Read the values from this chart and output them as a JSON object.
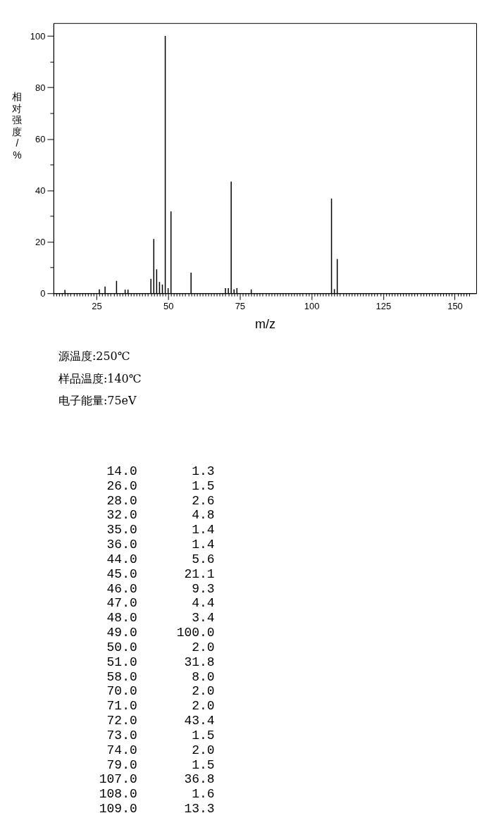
{
  "chart_data": [
    {
      "type": "bar",
      "xlabel": "m/z",
      "ylabel": "相对强度/%",
      "annotations": [
        "源温度:250℃",
        "样品温度:140℃",
        "电子能量:75eV"
      ],
      "x": [
        14,
        26,
        28,
        32,
        35,
        36,
        44,
        45,
        46,
        47,
        48,
        49,
        50,
        51,
        58,
        70,
        71,
        72,
        73,
        74,
        79,
        107,
        108,
        109
      ],
      "values": [
        1.3,
        1.5,
        2.6,
        4.8,
        1.4,
        1.4,
        5.6,
        21.1,
        9.3,
        4.4,
        3.4,
        100,
        2,
        31.8,
        8,
        2,
        2,
        43.4,
        1.5,
        2,
        1.5,
        36.8,
        1.6,
        13.3
      ],
      "color": "#000000",
      "xlim": [
        10,
        157.5
      ],
      "ylim": [
        0,
        105
      ],
      "yticks": [
        0,
        {
          "value": 10,
          "label": null
        },
        20,
        {
          "value": 30,
          "label": null
        },
        40,
        {
          "value": 50,
          "label": null
        },
        60,
        {
          "value": 70,
          "label": null
        },
        80,
        {
          "value": 90,
          "label": null
        },
        100
      ],
      "xticks": [
        {
          "value": 10,
          "label": null
        },
        {
          "value": 11,
          "label": null
        },
        {
          "value": 12,
          "label": null
        },
        {
          "value": 13,
          "label": null
        },
        {
          "value": 14,
          "label": null
        },
        {
          "value": 15,
          "label": null
        },
        {
          "value": 16,
          "label": null
        },
        {
          "value": 17,
          "label": null
        },
        {
          "value": 18,
          "label": null
        },
        {
          "value": 19,
          "label": null
        },
        {
          "value": 20,
          "label": null
        },
        {
          "value": 21,
          "label": null
        },
        {
          "value": 22,
          "label": null
        },
        {
          "value": 23,
          "label": null
        },
        {
          "value": 24,
          "label": null
        },
        25,
        {
          "value": 26,
          "label": null
        },
        {
          "value": 27,
          "label": null
        },
        {
          "value": 28,
          "label": null
        },
        {
          "value": 29,
          "label": null
        },
        {
          "value": 30,
          "label": null
        },
        {
          "value": 31,
          "label": null
        },
        {
          "value": 32,
          "label": null
        },
        {
          "value": 33,
          "label": null
        },
        {
          "value": 34,
          "label": null
        },
        {
          "value": 35,
          "label": null
        },
        {
          "value": 36,
          "label": null
        },
        {
          "value": 37,
          "label": null
        },
        {
          "value": 38,
          "label": null
        },
        {
          "value": 39,
          "label": null
        },
        {
          "value": 40,
          "label": null
        },
        {
          "value": 41,
          "label": null
        },
        {
          "value": 42,
          "label": null
        },
        {
          "value": 43,
          "label": null
        },
        {
          "value": 44,
          "label": null
        },
        {
          "value": 45,
          "label": null
        },
        {
          "value": 46,
          "label": null
        },
        {
          "value": 47,
          "label": null
        },
        {
          "value": 48,
          "label": null
        },
        {
          "value": 49,
          "label": null
        },
        50,
        {
          "value": 51,
          "label": null
        },
        {
          "value": 52,
          "label": null
        },
        {
          "value": 53,
          "label": null
        },
        {
          "value": 54,
          "label": null
        },
        {
          "value": 55,
          "label": null
        },
        {
          "value": 56,
          "label": null
        },
        {
          "value": 57,
          "label": null
        },
        {
          "value": 58,
          "label": null
        },
        {
          "value": 59,
          "label": null
        },
        {
          "value": 60,
          "label": null
        },
        {
          "value": 61,
          "label": null
        },
        {
          "value": 62,
          "label": null
        },
        {
          "value": 63,
          "label": null
        },
        {
          "value": 64,
          "label": null
        },
        {
          "value": 65,
          "label": null
        },
        {
          "value": 66,
          "label": null
        },
        {
          "value": 67,
          "label": null
        },
        {
          "value": 68,
          "label": null
        },
        {
          "value": 69,
          "label": null
        },
        {
          "value": 70,
          "label": null
        },
        {
          "value": 71,
          "label": null
        },
        {
          "value": 72,
          "label": null
        },
        {
          "value": 73,
          "label": null
        },
        {
          "value": 74,
          "label": null
        },
        75,
        {
          "value": 76,
          "label": null
        },
        {
          "value": 77,
          "label": null
        },
        {
          "value": 78,
          "label": null
        },
        {
          "value": 79,
          "label": null
        },
        {
          "value": 80,
          "label": null
        },
        {
          "value": 81,
          "label": null
        },
        {
          "value": 82,
          "label": null
        },
        {
          "value": 83,
          "label": null
        },
        {
          "value": 84,
          "label": null
        },
        {
          "value": 85,
          "label": null
        },
        {
          "value": 86,
          "label": null
        },
        {
          "value": 87,
          "label": null
        },
        {
          "value": 88,
          "label": null
        },
        {
          "value": 89,
          "label": null
        },
        {
          "value": 90,
          "label": null
        },
        {
          "value": 91,
          "label": null
        },
        {
          "value": 92,
          "label": null
        },
        {
          "value": 93,
          "label": null
        },
        {
          "value": 94,
          "label": null
        },
        {
          "value": 95,
          "label": null
        },
        {
          "value": 96,
          "label": null
        },
        {
          "value": 97,
          "label": null
        },
        {
          "value": 98,
          "label": null
        },
        {
          "value": 99,
          "label": null
        },
        100,
        {
          "value": 101,
          "label": null
        },
        {
          "value": 102,
          "label": null
        },
        {
          "value": 103,
          "label": null
        },
        {
          "value": 104,
          "label": null
        },
        {
          "value": 105,
          "label": null
        },
        {
          "value": 106,
          "label": null
        },
        {
          "value": 107,
          "label": null
        },
        {
          "value": 108,
          "label": null
        },
        {
          "value": 109,
          "label": null
        },
        {
          "value": 110,
          "label": null
        },
        {
          "value": 111,
          "label": null
        },
        {
          "value": 112,
          "label": null
        },
        {
          "value": 113,
          "label": null
        },
        {
          "value": 114,
          "label": null
        },
        {
          "value": 115,
          "label": null
        },
        {
          "value": 116,
          "label": null
        },
        {
          "value": 117,
          "label": null
        },
        {
          "value": 118,
          "label": null
        },
        {
          "value": 119,
          "label": null
        },
        {
          "value": 120,
          "label": null
        },
        {
          "value": 121,
          "label": null
        },
        {
          "value": 122,
          "label": null
        },
        {
          "value": 123,
          "label": null
        },
        {
          "value": 124,
          "label": null
        },
        125,
        {
          "value": 126,
          "label": null
        },
        {
          "value": 127,
          "label": null
        },
        {
          "value": 128,
          "label": null
        },
        {
          "value": 129,
          "label": null
        },
        {
          "value": 130,
          "label": null
        },
        {
          "value": 131,
          "label": null
        },
        {
          "value": 132,
          "label": null
        },
        {
          "value": 133,
          "label": null
        },
        {
          "value": 134,
          "label": null
        },
        {
          "value": 135,
          "label": null
        },
        {
          "value": 136,
          "label": null
        },
        {
          "value": 137,
          "label": null
        },
        {
          "value": 138,
          "label": null
        },
        {
          "value": 139,
          "label": null
        },
        {
          "value": 140,
          "label": null
        },
        {
          "value": 141,
          "label": null
        },
        {
          "value": 142,
          "label": null
        },
        {
          "value": 143,
          "label": null
        },
        {
          "value": 144,
          "label": null
        },
        {
          "value": 145,
          "label": null
        },
        {
          "value": 146,
          "label": null
        },
        {
          "value": 147,
          "label": null
        },
        {
          "value": 148,
          "label": null
        },
        {
          "value": 149,
          "label": null
        },
        150,
        {
          "value": 151,
          "label": null
        },
        {
          "value": 152,
          "label": null
        },
        {
          "value": 153,
          "label": null
        },
        {
          "value": 154,
          "label": null
        },
        {
          "value": 155,
          "label": null
        }
      ]
    },
    {
      "type": "other",
      "annotations": [
        "14.0",
        "1.3",
        "26.0",
        "1.5",
        "28.0",
        "2.6",
        "32.0",
        "4.8",
        "35.0",
        "1.4",
        "36.0",
        "1.4",
        "44.0",
        "5.6",
        "45.0",
        "21.1",
        "46.0",
        "9.3",
        "47.0",
        "4.4",
        "48.0",
        "3.4",
        "49.0",
        "100.0",
        "50.0",
        "2.0",
        "51.0",
        "31.8",
        "58.0",
        "8.0",
        "70.0",
        "2.0",
        "71.0",
        "2.0",
        "72.0",
        "43.4",
        "73.0",
        "1.5",
        "74.0",
        "2.0",
        "79.0",
        "1.5",
        "107.0",
        "36.8",
        "108.0",
        "1.6",
        "109.0",
        "13.3"
      ]
    }
  ]
}
